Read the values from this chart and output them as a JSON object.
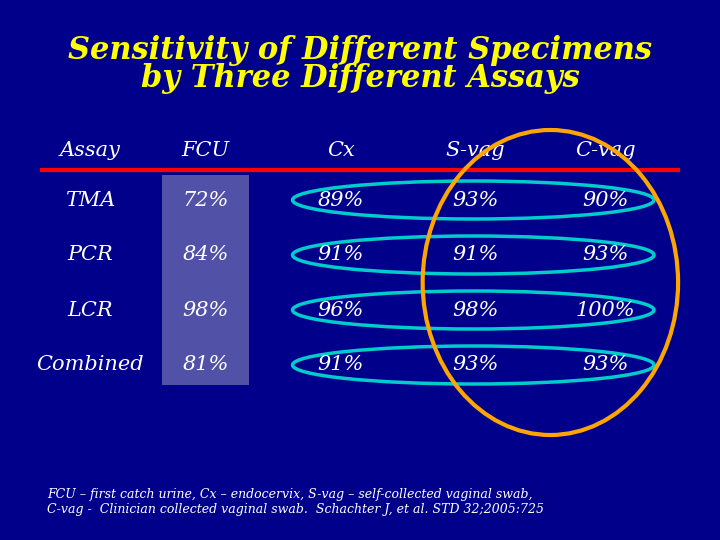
{
  "title_line1": "Sensitivity of Different Specimens",
  "title_line2": "by Three Different Assays",
  "title_color": "#FFFF00",
  "bg_color": "#00008B",
  "header_row": [
    "Assay",
    "FCU",
    "Cx",
    "S-vag",
    "C-vag"
  ],
  "rows": [
    [
      "TMA",
      "72%",
      "89%",
      "93%",
      "90%"
    ],
    [
      "PCR",
      "84%",
      "91%",
      "91%",
      "93%"
    ],
    [
      "LCR",
      "98%",
      "96%",
      "98%",
      "100%"
    ],
    [
      "Combined",
      "81%",
      "91%",
      "93%",
      "93%"
    ]
  ],
  "text_color": "#FFFFFF",
  "fcu_bg_color": "#8888BB",
  "footnote": "FCU – first catch urine, Cx – endocervix, S-vag – self-collected vaginal swab,\nC-vag -  Clinician collected vaginal swab.  Schachter J, et al. STD 32;2005:725",
  "footnote_color": "#FFFFFF",
  "red_line_color": "#FF0000",
  "cyan_ellipse_color": "#00CCCC",
  "orange_ellipse_color": "#FFA500"
}
